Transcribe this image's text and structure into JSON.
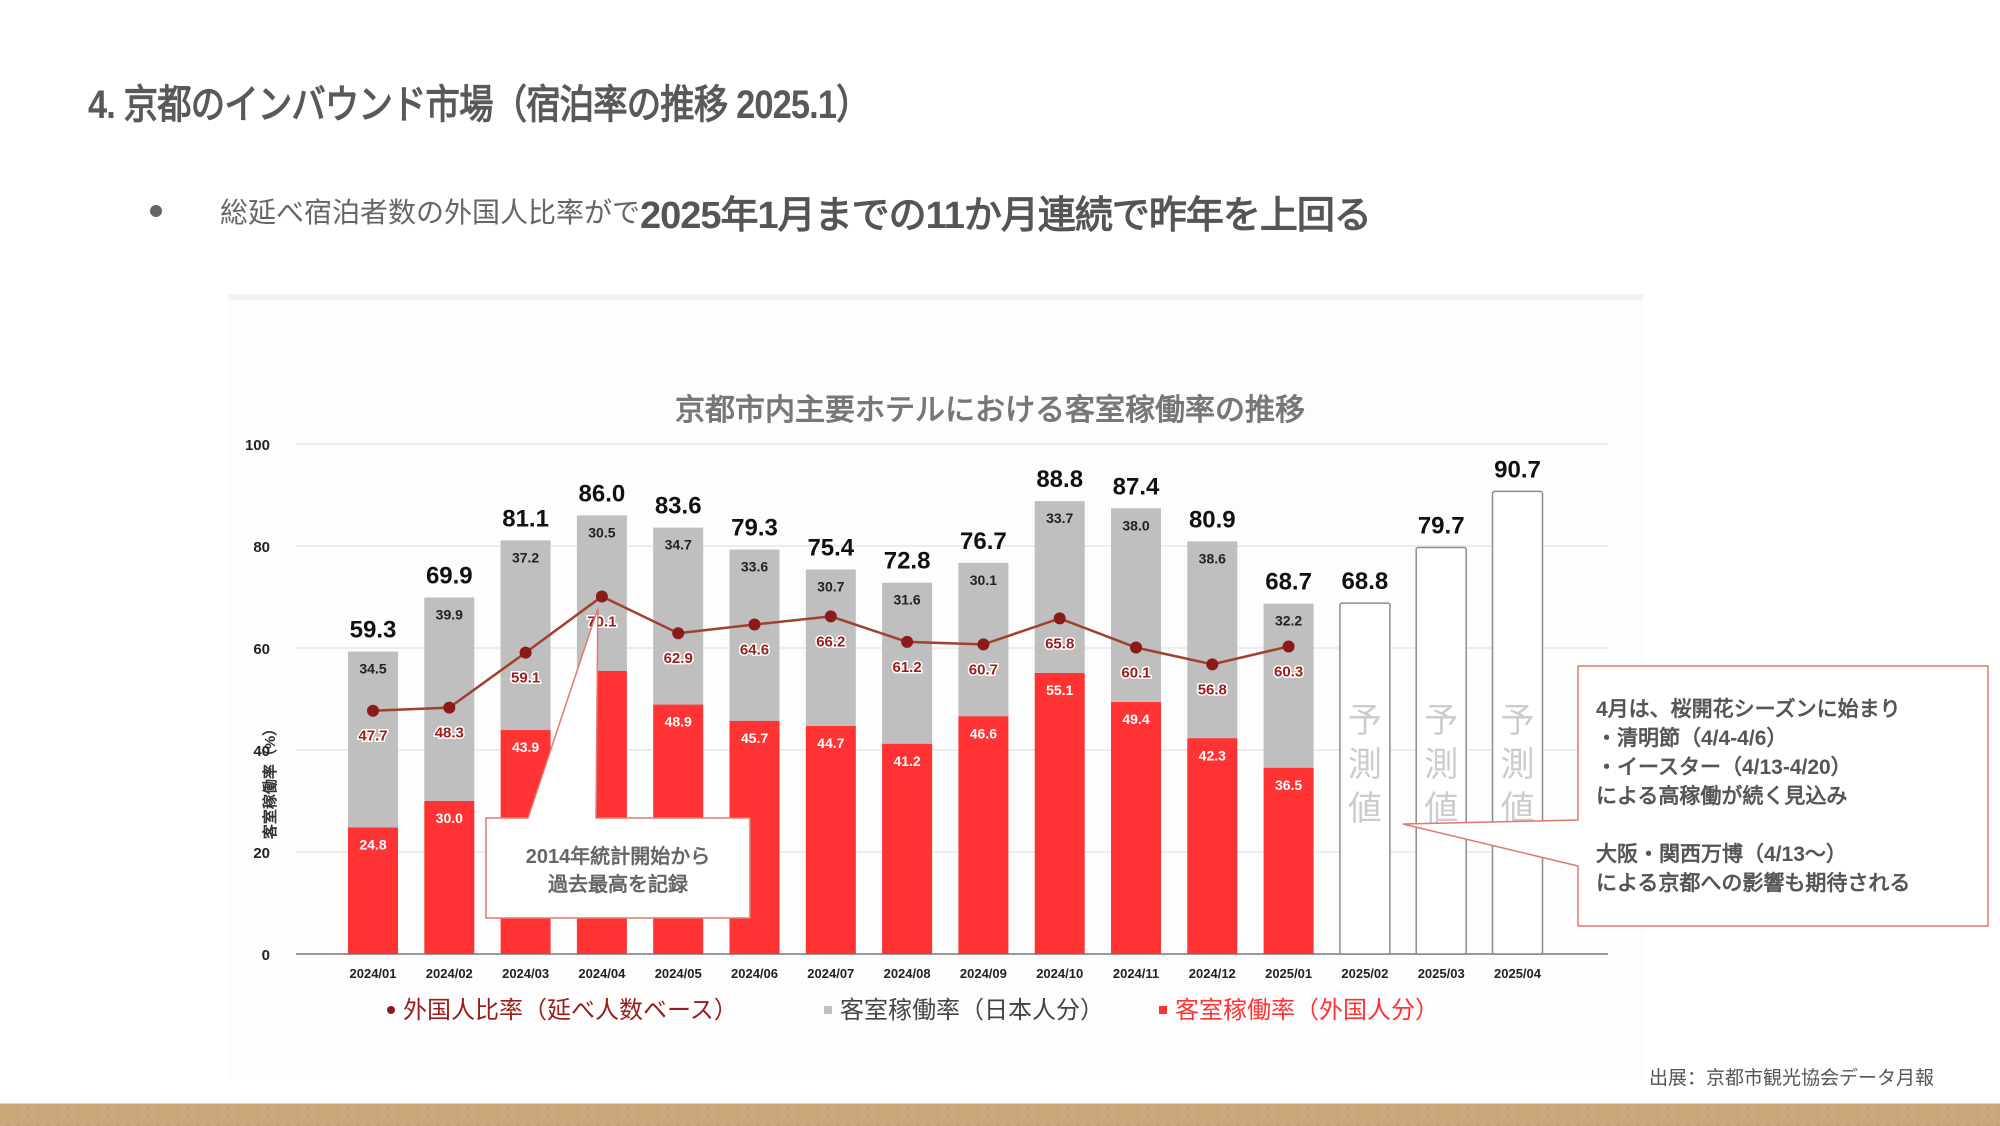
{
  "slide": {
    "title": "4. 京都のインバウンド市場（宿泊率の推移 2025.1）",
    "bullet": {
      "normal_text": "総延べ宿泊者数の外国人比率がで",
      "emphasis_text": "2025年1月までの11か月連続で昨年を上回る"
    },
    "source": "出展：京都市観光協会データ月報"
  },
  "colors": {
    "foreign_occupancy": "#ff3333",
    "japanese_occupancy": "#bfbfbf",
    "foreign_ratio_line": "#8b1a1a",
    "callout_border": "#e07a6a",
    "forecast_border": "#8c8c8c",
    "footer_band": "#cca777"
  },
  "chart_data": {
    "type": "bar",
    "stacked": true,
    "title": "京都市内主要ホテルにおける客室稼働率の推移",
    "xlabel": "",
    "ylabel": "客室稼働率（%）",
    "ylim": [
      0,
      100
    ],
    "yticks": [
      0,
      20,
      40,
      60,
      80,
      100
    ],
    "grid": true,
    "legend_position": "bottom",
    "categories": [
      "2024/01",
      "2024/02",
      "2024/03",
      "2024/04",
      "2024/05",
      "2024/06",
      "2024/07",
      "2024/08",
      "2024/09",
      "2024/10",
      "2024/11",
      "2024/12",
      "2025/01",
      "2025/02",
      "2025/03",
      "2025/04"
    ],
    "series": [
      {
        "name": "客室稼働率（外国人分）",
        "kind": "bar",
        "values": [
          24.8,
          30.0,
          43.9,
          55.5,
          48.9,
          45.7,
          44.7,
          41.2,
          46.6,
          55.1,
          49.4,
          42.3,
          36.5,
          null,
          null,
          null
        ],
        "labels": [
          "24.8",
          "30.0",
          "43.9",
          "",
          "48.9",
          "45.7",
          "44.7",
          "41.2",
          "46.6",
          "55.1",
          "49.4",
          "42.3",
          "36.5",
          "",
          "",
          ""
        ]
      },
      {
        "name": "客室稼働率（日本人分）",
        "kind": "bar",
        "values": [
          34.5,
          39.9,
          37.2,
          30.5,
          34.7,
          33.6,
          30.7,
          31.6,
          30.1,
          33.7,
          38.0,
          38.6,
          32.2,
          null,
          null,
          null
        ]
      },
      {
        "name": "外国人比率（延べ人数ベース）",
        "kind": "line",
        "values": [
          47.7,
          48.3,
          59.1,
          70.1,
          62.9,
          64.6,
          66.2,
          61.2,
          60.7,
          65.8,
          60.1,
          56.8,
          60.3,
          null,
          null,
          null
        ]
      }
    ],
    "totals": [
      59.3,
      69.9,
      81.1,
      86.0,
      83.6,
      79.3,
      75.4,
      72.8,
      76.7,
      88.8,
      87.4,
      80.9,
      68.7,
      68.8,
      79.7,
      90.7
    ],
    "forecast": {
      "categories": [
        "2025/02",
        "2025/03",
        "2025/04"
      ],
      "values": [
        68.8,
        79.7,
        90.7
      ],
      "label": "予測値"
    },
    "legend": [
      {
        "name": "外国人比率（延べ人数ベース）",
        "marker": "dot"
      },
      {
        "name": "客室稼働率（日本人分）",
        "marker": "square"
      },
      {
        "name": "客室稼働率（外国人分）",
        "marker": "square"
      }
    ],
    "annotations": [
      {
        "id": "record",
        "target": "2024/04",
        "lines": [
          "2014年統計開始から",
          "過去最高を記録"
        ]
      },
      {
        "id": "outlook",
        "target": "2025/04",
        "lines": [
          "4月は、桜開花シーズンに始まり",
          "・清明節（4/4-4/6）",
          "・イースター（4/13-4/20）",
          "による高稼働が続く見込み",
          "",
          "大阪・関西万博（4/13〜）",
          "による京都への影響も期待される"
        ]
      }
    ]
  }
}
